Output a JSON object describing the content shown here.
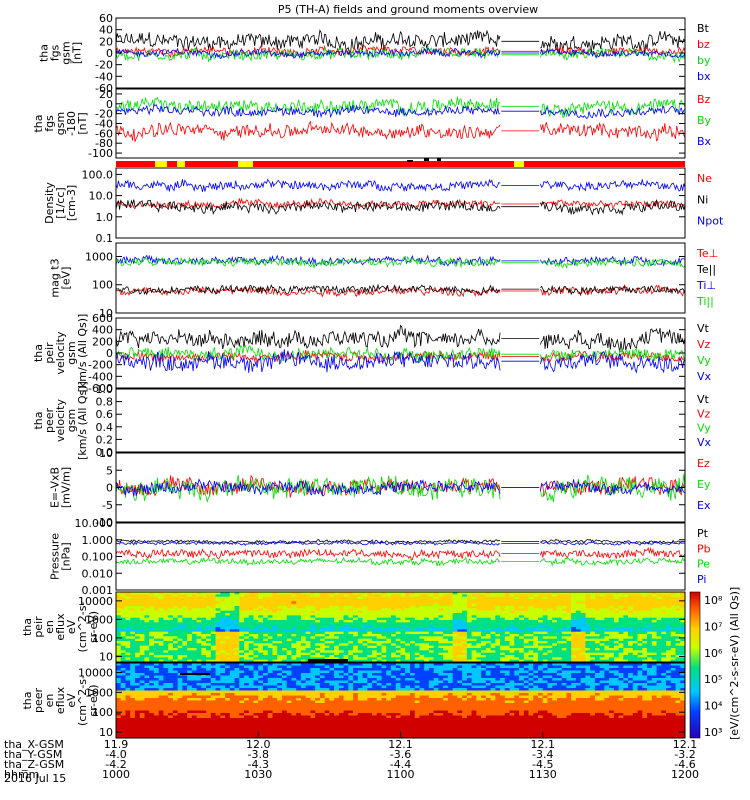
{
  "title": "P5 (TH-A) fields and ground moments overview",
  "date_label": "2016 Jul 15",
  "colors": {
    "black": "#000000",
    "red": "#ff0000",
    "green": "#00e000",
    "blue": "#0000ff"
  },
  "chart_data": [
    {
      "id": "fgs_gsm",
      "type": "line",
      "ylabel": [
        "tha",
        "fgs",
        "gsm",
        "[nT]"
      ],
      "ylim": [
        -60,
        60
      ],
      "yticks": [
        60,
        40,
        20,
        0,
        -20,
        -40,
        -60
      ],
      "series": [
        {
          "name": "Bt",
          "color": "#000000",
          "level": 20,
          "amp": 12
        },
        {
          "name": "bz",
          "color": "#ff0000",
          "level": 3,
          "amp": 6
        },
        {
          "name": "by",
          "color": "#00e000",
          "level": -3,
          "amp": 8
        },
        {
          "name": "bx",
          "color": "#0000ff",
          "level": 0,
          "amp": 5
        }
      ]
    },
    {
      "id": "fgs_gsm_2",
      "type": "line",
      "ylabel": [
        "tha",
        "fgs",
        "gsm",
        "-180",
        "[nT]"
      ],
      "ylim": [
        -110,
        30
      ],
      "yticks": [
        20,
        0,
        -20,
        -40,
        -60,
        -80,
        -100
      ],
      "series": [
        {
          "name": "Bz",
          "color": "#ff0000",
          "level": -55,
          "amp": 12
        },
        {
          "name": "By",
          "color": "#00e000",
          "level": -5,
          "amp": 12
        },
        {
          "name": "Bx",
          "color": "#0000ff",
          "level": -15,
          "amp": 8
        }
      ]
    },
    {
      "id": "density",
      "type": "line",
      "log": true,
      "ylabel": [
        "Density",
        "[1/cc]",
        "[cm-3]"
      ],
      "ylim": [
        0.1,
        200
      ],
      "yticks_log": [
        100,
        10,
        1,
        0.1
      ],
      "ytick_labels": [
        "100.0",
        "10.0",
        "1.0",
        "0.1"
      ],
      "series": [
        {
          "name": "Ne",
          "color": "#ff0000",
          "level": 4,
          "amp": 0.25
        },
        {
          "name": "Ni",
          "color": "#000000",
          "level": 3,
          "amp": 0.35
        },
        {
          "name": "Npot",
          "color": "#0000ff",
          "level": 30,
          "amp": 0.3
        }
      ]
    },
    {
      "id": "temperature",
      "type": "line",
      "log": true,
      "ylabel": [
        "mag t3",
        "[eV]"
      ],
      "ylim": [
        10,
        3000
      ],
      "yticks_log": [
        1000,
        100,
        10
      ],
      "ytick_labels": [
        "1000",
        "100",
        "10"
      ],
      "series": [
        {
          "name": "Te⊥",
          "color": "#ff0000",
          "level": 60,
          "amp": 0.2
        },
        {
          "name": "Te||",
          "color": "#000000",
          "level": 70,
          "amp": 0.2
        },
        {
          "name": "Ti⊥",
          "color": "#0000ff",
          "level": 700,
          "amp": 0.2
        },
        {
          "name": "Ti||",
          "color": "#00e000",
          "level": 600,
          "amp": 0.2
        }
      ]
    },
    {
      "id": "peir_velocity",
      "type": "line",
      "ylabel": [
        "tha",
        "peir",
        "velocity",
        "gsm",
        "[km/s (All Qs)]"
      ],
      "ylim": [
        -600,
        600
      ],
      "yticks": [
        600,
        400,
        200,
        0,
        -200,
        -400,
        -600
      ],
      "series": [
        {
          "name": "Vt",
          "color": "#000000",
          "level": 250,
          "amp": 120
        },
        {
          "name": "Vz",
          "color": "#ff0000",
          "level": -60,
          "amp": 70
        },
        {
          "name": "Vy",
          "color": "#00e000",
          "level": -20,
          "amp": 90
        },
        {
          "name": "Vx",
          "color": "#0000ff",
          "level": -140,
          "amp": 130
        }
      ]
    },
    {
      "id": "peer_velocity",
      "type": "line",
      "empty": true,
      "ylabel": [
        "tha",
        "peer",
        "velocity",
        "gsm",
        "[km/s (All Qs)]"
      ],
      "ylim": [
        0,
        1
      ],
      "yticks": [
        1.0,
        0.8,
        0.6,
        0.4,
        0.2,
        0.0
      ],
      "ytick_labels": [
        "1.0",
        "0.8",
        "0.6",
        "0.4",
        "0.2",
        "0.0"
      ],
      "series": [
        {
          "name": "Vt",
          "color": "#000000"
        },
        {
          "name": "Vz",
          "color": "#ff0000"
        },
        {
          "name": "Vy",
          "color": "#00e000"
        },
        {
          "name": "Vx",
          "color": "#0000ff"
        }
      ]
    },
    {
      "id": "efield",
      "type": "line",
      "ylabel": [
        "E=-VxB",
        "[mV/m]"
      ],
      "ylim": [
        -10,
        10
      ],
      "yticks": [
        10,
        5,
        0,
        -5,
        -10
      ],
      "series": [
        {
          "name": "Ez",
          "color": "#ff0000",
          "level": 0,
          "amp": 2
        },
        {
          "name": "Ey",
          "color": "#00e000",
          "level": 0,
          "amp": 2.5
        },
        {
          "name": "Ex",
          "color": "#0000ff",
          "level": 0,
          "amp": 1.5
        }
      ]
    },
    {
      "id": "pressure",
      "type": "line",
      "log": true,
      "ylabel": [
        "Pressure",
        "[nPa]"
      ],
      "ylim": [
        0.001,
        10
      ],
      "yticks_log": [
        10,
        1,
        0.1,
        0.01,
        0.001
      ],
      "ytick_labels": [
        "10.000",
        "1.000",
        "0.100",
        "0.010",
        "0.001"
      ],
      "series": [
        {
          "name": "Pt",
          "color": "#000000",
          "level": 0.8,
          "amp": 0.12
        },
        {
          "name": "Pb",
          "color": "#ff0000",
          "level": 0.15,
          "amp": 0.35
        },
        {
          "name": "Pe",
          "color": "#00e000",
          "level": 0.05,
          "amp": 0.25
        },
        {
          "name": "Pi",
          "color": "#0000ff",
          "level": 0.6,
          "amp": 0.12
        }
      ]
    },
    {
      "id": "peir_eflux",
      "type": "heatmap",
      "ylabel": [
        "tha",
        "peir",
        "en",
        "eflux",
        "eV",
        "(cm^2-s-",
        "sr-eV)"
      ],
      "yticks_log": [
        10000,
        1000,
        100,
        10
      ],
      "ytick_labels": [
        "10000",
        "1000",
        "100",
        "10"
      ],
      "ylim": [
        5,
        30000
      ],
      "hot_band": "high"
    },
    {
      "id": "peer_eflux",
      "type": "heatmap",
      "ylabel": [
        "tha",
        "peer",
        "en",
        "eflux",
        "eV",
        "(cm^2-s-",
        "sr-eV)"
      ],
      "yticks_log": [
        10000,
        1000,
        100,
        10
      ],
      "ytick_labels": [
        "10000",
        "1000",
        "100",
        "10"
      ],
      "ylim": [
        5,
        30000
      ],
      "hot_band": "low"
    }
  ],
  "colorbar": {
    "labels": [
      "10⁸",
      "10⁷",
      "10⁶",
      "10⁵",
      "10⁴",
      "10³"
    ],
    "unit": "[eV/(cm^2-s-sr-eV) (All Qs)]"
  },
  "xaxis": {
    "rows": [
      {
        "label": "tha_X-GSM",
        "values": [
          "11.9",
          "12.0",
          "12.1",
          "12.1",
          "12.1"
        ]
      },
      {
        "label": "tha_Y-GSM",
        "values": [
          "-4.0",
          "-3.8",
          "-3.6",
          "-3.4",
          "-3.2"
        ]
      },
      {
        "label": "tha_Z-GSM",
        "values": [
          "-4.2",
          "-4.3",
          "-4.4",
          "-4.5",
          "-4.6"
        ]
      },
      {
        "label": "hhmm",
        "values": [
          "1000",
          "1030",
          "1100",
          "1130",
          "1200"
        ]
      }
    ]
  }
}
